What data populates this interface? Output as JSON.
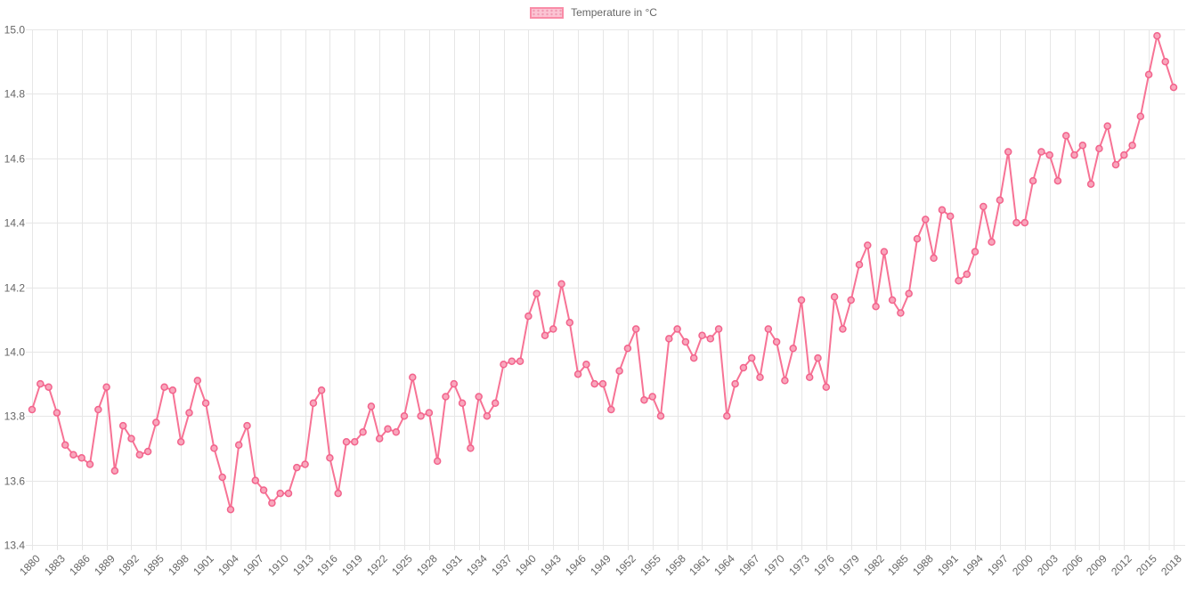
{
  "legend": {
    "label": "Temperature in °C"
  },
  "chart_data": {
    "type": "line",
    "title": "",
    "xlabel": "",
    "ylabel": "",
    "legend_position": "top",
    "grid": true,
    "ylim": [
      13.4,
      15.0
    ],
    "y_ticks": [
      "15.0",
      "14.8",
      "14.6",
      "14.4",
      "14.2",
      "14.0",
      "13.8",
      "13.6",
      "13.4"
    ],
    "x_ticks": [
      1880,
      1883,
      1886,
      1889,
      1892,
      1895,
      1898,
      1901,
      1904,
      1907,
      1910,
      1913,
      1916,
      1919,
      1922,
      1925,
      1928,
      1931,
      1934,
      1937,
      1940,
      1943,
      1946,
      1949,
      1952,
      1955,
      1958,
      1961,
      1964,
      1967,
      1970,
      1973,
      1976,
      1979,
      1982,
      1985,
      1988,
      1991,
      1994,
      1997,
      2000,
      2003,
      2006,
      2009,
      2012,
      2015,
      2018
    ],
    "years": [
      1880,
      1881,
      1882,
      1883,
      1884,
      1885,
      1886,
      1887,
      1888,
      1889,
      1890,
      1891,
      1892,
      1893,
      1894,
      1895,
      1896,
      1897,
      1898,
      1899,
      1900,
      1901,
      1902,
      1903,
      1904,
      1905,
      1906,
      1907,
      1908,
      1909,
      1910,
      1911,
      1912,
      1913,
      1914,
      1915,
      1916,
      1917,
      1918,
      1919,
      1920,
      1921,
      1922,
      1923,
      1924,
      1925,
      1926,
      1927,
      1928,
      1929,
      1930,
      1931,
      1932,
      1933,
      1934,
      1935,
      1936,
      1937,
      1938,
      1939,
      1940,
      1941,
      1942,
      1943,
      1944,
      1945,
      1946,
      1947,
      1948,
      1949,
      1950,
      1951,
      1952,
      1953,
      1954,
      1955,
      1956,
      1957,
      1958,
      1959,
      1960,
      1961,
      1962,
      1963,
      1964,
      1965,
      1966,
      1967,
      1968,
      1969,
      1970,
      1971,
      1972,
      1973,
      1974,
      1975,
      1976,
      1977,
      1978,
      1979,
      1980,
      1981,
      1982,
      1983,
      1984,
      1985,
      1986,
      1987,
      1988,
      1989,
      1990,
      1991,
      1992,
      1993,
      1994,
      1995,
      1996,
      1997,
      1998,
      1999,
      2000,
      2001,
      2002,
      2003,
      2004,
      2005,
      2006,
      2007,
      2008,
      2009,
      2010,
      2011,
      2012,
      2013,
      2014,
      2015,
      2016,
      2017,
      2018
    ],
    "series": [
      {
        "name": "Temperature in °C",
        "values": [
          13.82,
          13.9,
          13.89,
          13.81,
          13.71,
          13.68,
          13.67,
          13.65,
          13.82,
          13.89,
          13.63,
          13.77,
          13.73,
          13.68,
          13.69,
          13.78,
          13.89,
          13.88,
          13.72,
          13.81,
          13.91,
          13.84,
          13.7,
          13.61,
          13.51,
          13.71,
          13.77,
          13.6,
          13.57,
          13.53,
          13.56,
          13.56,
          13.64,
          13.65,
          13.84,
          13.88,
          13.67,
          13.56,
          13.72,
          13.72,
          13.75,
          13.83,
          13.73,
          13.76,
          13.75,
          13.8,
          13.92,
          13.8,
          13.81,
          13.66,
          13.86,
          13.9,
          13.84,
          13.7,
          13.86,
          13.8,
          13.84,
          13.96,
          13.97,
          13.97,
          14.11,
          14.18,
          14.05,
          14.07,
          14.21,
          14.09,
          13.93,
          13.96,
          13.9,
          13.9,
          13.82,
          13.94,
          14.01,
          14.07,
          13.85,
          13.86,
          13.8,
          14.04,
          14.07,
          14.03,
          13.98,
          14.05,
          14.04,
          14.07,
          13.8,
          13.9,
          13.95,
          13.98,
          13.92,
          14.07,
          14.03,
          13.91,
          14.01,
          14.16,
          13.92,
          13.98,
          13.89,
          14.17,
          14.07,
          14.16,
          14.27,
          14.33,
          14.14,
          14.31,
          14.16,
          14.12,
          14.18,
          14.35,
          14.41,
          14.29,
          14.44,
          14.42,
          14.22,
          14.24,
          14.31,
          14.45,
          14.34,
          14.47,
          14.62,
          14.4,
          14.4,
          14.53,
          14.62,
          14.61,
          14.53,
          14.67,
          14.61,
          14.64,
          14.52,
          14.63,
          14.7,
          14.58,
          14.61,
          14.64,
          14.73,
          14.86,
          14.98,
          14.9,
          14.82
        ]
      }
    ],
    "colors": {
      "line": "#f77395",
      "point_fill": "#f9a6bc",
      "point_border": "#f2638c",
      "grid": "#e6e6e6",
      "tick_text": "#666666"
    }
  }
}
